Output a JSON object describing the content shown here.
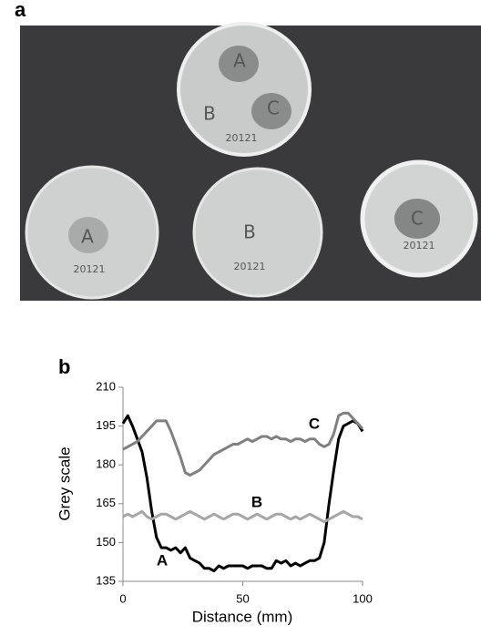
{
  "panel_a": {
    "label": "a",
    "plates": [
      {
        "labels": [
          "A",
          "B",
          "C",
          "20121"
        ]
      },
      {
        "labels": [
          "A",
          "20121"
        ]
      },
      {
        "labels": [
          "B",
          "20121"
        ]
      },
      {
        "labels": [
          "C",
          "20121"
        ]
      }
    ]
  },
  "panel_b": {
    "label": "b"
  },
  "chart_data": {
    "type": "line",
    "x_label": "Distance (mm)",
    "y_label": "Grey scale",
    "x": [
      0,
      2,
      4,
      6,
      8,
      10,
      12,
      14,
      16,
      18,
      20,
      22,
      24,
      26,
      28,
      30,
      32,
      34,
      36,
      38,
      40,
      42,
      44,
      46,
      48,
      50,
      52,
      54,
      56,
      58,
      60,
      62,
      64,
      66,
      68,
      70,
      72,
      74,
      76,
      78,
      80,
      82,
      84,
      86,
      88,
      90,
      92,
      94,
      96,
      98,
      100
    ],
    "series": [
      {
        "name": "A",
        "color": "#000000",
        "values": [
          196,
          199,
          195,
          190,
          185,
          175,
          162,
          152,
          148,
          148,
          147,
          148,
          146,
          148,
          144,
          143,
          142,
          140,
          140,
          139,
          141,
          140,
          141,
          141,
          141,
          141,
          140,
          141,
          141,
          141,
          140,
          140,
          143,
          142,
          143,
          141,
          142,
          141,
          142,
          143,
          143,
          144,
          150,
          165,
          178,
          190,
          195,
          196,
          197,
          196,
          193
        ]
      },
      {
        "name": "B",
        "color": "#a6a6a6",
        "values": [
          160,
          161,
          160,
          161,
          162,
          160,
          159,
          160,
          161,
          161,
          160,
          159,
          160,
          161,
          162,
          161,
          160,
          159,
          160,
          161,
          160,
          159,
          160,
          161,
          161,
          160,
          159,
          160,
          161,
          160,
          159,
          160,
          161,
          161,
          160,
          159,
          160,
          159,
          160,
          161,
          160,
          159,
          158,
          159,
          160,
          161,
          162,
          161,
          160,
          160,
          159
        ]
      },
      {
        "name": "C",
        "color": "#808080",
        "values": [
          186,
          187,
          188,
          189,
          191,
          193,
          195,
          197,
          197,
          197,
          193,
          188,
          183,
          177,
          176,
          177,
          178,
          180,
          182,
          184,
          185,
          186,
          187,
          188,
          188,
          189,
          190,
          189,
          190,
          191,
          191,
          190,
          191,
          190,
          190,
          189,
          190,
          190,
          189,
          190,
          190,
          188,
          187,
          188,
          192,
          199,
          200,
          200,
          198,
          196,
          194
        ]
      }
    ],
    "xlim": [
      0,
      100
    ],
    "xticks": [
      0,
      50,
      100
    ],
    "ylim": [
      135,
      210
    ],
    "yticks": [
      135,
      150,
      165,
      180,
      195,
      210
    ],
    "grid": false
  }
}
